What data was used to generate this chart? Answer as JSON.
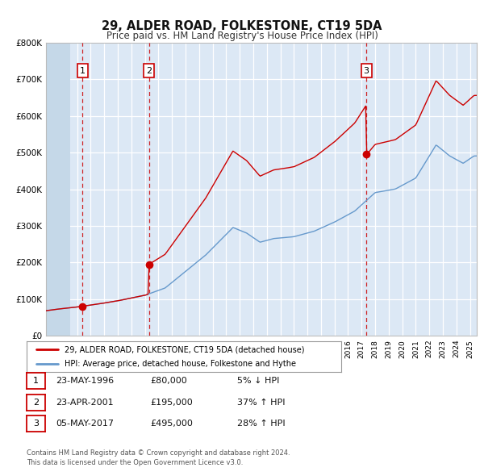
{
  "title": "29, ALDER ROAD, FOLKESTONE, CT19 5DA",
  "subtitle": "Price paid vs. HM Land Registry's House Price Index (HPI)",
  "background_color": "#f0f4fa",
  "plot_bg_color": "#dce8f5",
  "grid_color": "#ffffff",
  "hatch_region_color": "#c5d8e8",
  "ylim": [
    0,
    800000
  ],
  "yticks": [
    0,
    100000,
    200000,
    300000,
    400000,
    500000,
    600000,
    700000,
    800000
  ],
  "ytick_labels": [
    "£0",
    "£100K",
    "£200K",
    "£300K",
    "£400K",
    "£500K",
    "£600K",
    "£700K",
    "£800K"
  ],
  "xlim_start": 1993.7,
  "xlim_end": 2025.5,
  "hatch_end": 1995.5,
  "sale_color": "#cc0000",
  "hpi_color": "#6699cc",
  "transaction_dates": [
    1996.39,
    2001.31,
    2017.35
  ],
  "transaction_prices": [
    80000,
    195000,
    495000
  ],
  "transaction_labels": [
    "1",
    "2",
    "3"
  ],
  "legend_line1": "29, ALDER ROAD, FOLKESTONE, CT19 5DA (detached house)",
  "legend_line2": "HPI: Average price, detached house, Folkestone and Hythe",
  "table_rows": [
    [
      "1",
      "23-MAY-1996",
      "£80,000",
      "5% ↓ HPI"
    ],
    [
      "2",
      "23-APR-2001",
      "£195,000",
      "37% ↑ HPI"
    ],
    [
      "3",
      "05-MAY-2017",
      "£495,000",
      "28% ↑ HPI"
    ]
  ],
  "footnote1": "Contains HM Land Registry data © Crown copyright and database right 2024.",
  "footnote2": "This data is licensed under the Open Government Licence v3.0."
}
